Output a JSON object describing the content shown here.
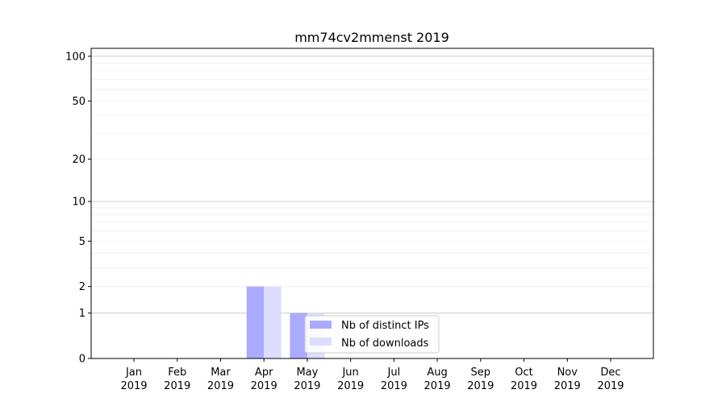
{
  "chart_data": {
    "type": "bar",
    "title": "mm74cv2mmenst 2019",
    "xlabel": "",
    "ylabel": "",
    "categories": [
      "Jan\n2019",
      "Feb\n2019",
      "Mar\n2019",
      "Apr\n2019",
      "May\n2019",
      "Jun\n2019",
      "Jul\n2019",
      "Aug\n2019",
      "Sep\n2019",
      "Oct\n2019",
      "Nov\n2019",
      "Dec\n2019"
    ],
    "series": [
      {
        "name": "Nb of distinct IPs",
        "color": "#aaaaff",
        "values": [
          0,
          0,
          0,
          2,
          1,
          0,
          0,
          0,
          0,
          0,
          0,
          0
        ]
      },
      {
        "name": "Nb of downloads",
        "color": "#ddddff",
        "values": [
          0,
          0,
          0,
          2,
          1,
          0,
          0,
          0,
          0,
          0,
          0,
          0
        ]
      }
    ],
    "y_scale": "log(1+y)",
    "ylim": [
      0,
      113
    ],
    "y_ticks": [
      0,
      1,
      2,
      5,
      10,
      20,
      50,
      100
    ],
    "grid": true,
    "legend_placement": "lower-center"
  }
}
